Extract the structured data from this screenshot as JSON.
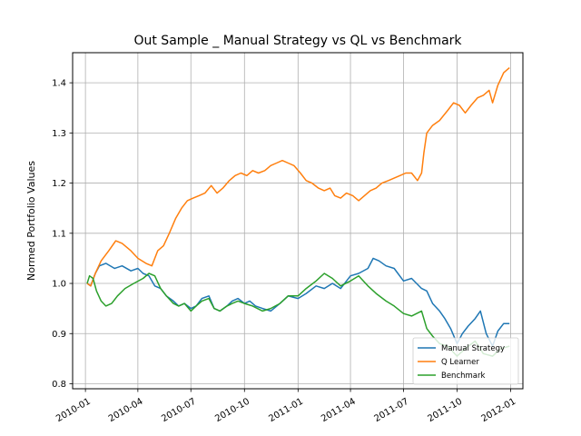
{
  "chart_data": {
    "type": "line",
    "title": "Out Sample _ Manual Strategy vs QL vs Benchmark",
    "xlabel": "",
    "ylabel": "Normed Portfolio Values",
    "x_ticks": [
      "2010-01",
      "2010-04",
      "2010-07",
      "2010-10",
      "2011-01",
      "2011-04",
      "2011-07",
      "2011-10",
      "2012-01"
    ],
    "y_ticks": [
      "0.8",
      "0.9",
      "1.0",
      "1.1",
      "1.2",
      "1.3",
      "1.4"
    ],
    "ylim": [
      0.79,
      1.46
    ],
    "xlim": [
      "2009-12-10",
      "2012-01-22"
    ],
    "grid": true,
    "legend_position": "lower right",
    "series": [
      {
        "name": "Manual Strategy",
        "color": "#1f77b4",
        "points": [
          [
            "2010-01-04",
            1.0
          ],
          [
            "2010-01-10",
            0.995
          ],
          [
            "2010-01-18",
            1.02
          ],
          [
            "2010-01-25",
            1.035
          ],
          [
            "2010-02-05",
            1.04
          ],
          [
            "2010-02-20",
            1.03
          ],
          [
            "2010-03-05",
            1.035
          ],
          [
            "2010-03-20",
            1.025
          ],
          [
            "2010-04-01",
            1.03
          ],
          [
            "2010-04-10",
            1.02
          ],
          [
            "2010-04-20",
            1.015
          ],
          [
            "2010-04-30",
            0.995
          ],
          [
            "2010-05-10",
            0.99
          ],
          [
            "2010-05-20",
            0.975
          ],
          [
            "2010-06-01",
            0.965
          ],
          [
            "2010-06-10",
            0.955
          ],
          [
            "2010-06-20",
            0.96
          ],
          [
            "2010-07-01",
            0.95
          ],
          [
            "2010-07-10",
            0.955
          ],
          [
            "2010-07-20",
            0.97
          ],
          [
            "2010-08-01",
            0.975
          ],
          [
            "2010-08-10",
            0.95
          ],
          [
            "2010-08-20",
            0.945
          ],
          [
            "2010-09-01",
            0.955
          ],
          [
            "2010-09-10",
            0.965
          ],
          [
            "2010-09-20",
            0.97
          ],
          [
            "2010-10-01",
            0.96
          ],
          [
            "2010-10-10",
            0.965
          ],
          [
            "2010-10-20",
            0.955
          ],
          [
            "2010-11-01",
            0.95
          ],
          [
            "2010-11-15",
            0.945
          ],
          [
            "2010-12-01",
            0.96
          ],
          [
            "2010-12-15",
            0.975
          ],
          [
            "2011-01-01",
            0.97
          ],
          [
            "2011-01-15",
            0.98
          ],
          [
            "2011-02-01",
            0.995
          ],
          [
            "2011-02-15",
            0.99
          ],
          [
            "2011-03-01",
            1.0
          ],
          [
            "2011-03-15",
            0.99
          ],
          [
            "2011-04-01",
            1.015
          ],
          [
            "2011-04-15",
            1.02
          ],
          [
            "2011-05-01",
            1.03
          ],
          [
            "2011-05-10",
            1.05
          ],
          [
            "2011-05-20",
            1.045
          ],
          [
            "2011-06-01",
            1.035
          ],
          [
            "2011-06-15",
            1.03
          ],
          [
            "2011-07-01",
            1.005
          ],
          [
            "2011-07-15",
            1.01
          ],
          [
            "2011-08-01",
            0.99
          ],
          [
            "2011-08-10",
            0.985
          ],
          [
            "2011-08-20",
            0.96
          ],
          [
            "2011-09-01",
            0.945
          ],
          [
            "2011-09-10",
            0.93
          ],
          [
            "2011-09-20",
            0.91
          ],
          [
            "2011-10-01",
            0.88
          ],
          [
            "2011-10-10",
            0.9
          ],
          [
            "2011-10-20",
            0.915
          ],
          [
            "2011-11-01",
            0.93
          ],
          [
            "2011-11-10",
            0.945
          ],
          [
            "2011-11-20",
            0.9
          ],
          [
            "2011-12-01",
            0.875
          ],
          [
            "2011-12-10",
            0.905
          ],
          [
            "2011-12-20",
            0.92
          ],
          [
            "2011-12-30",
            0.92
          ]
        ]
      },
      {
        "name": "Q Learner",
        "color": "#ff7f0e",
        "points": [
          [
            "2010-01-04",
            1.0
          ],
          [
            "2010-01-10",
            0.995
          ],
          [
            "2010-01-18",
            1.02
          ],
          [
            "2010-01-28",
            1.045
          ],
          [
            "2010-02-10",
            1.065
          ],
          [
            "2010-02-22",
            1.085
          ],
          [
            "2010-03-05",
            1.08
          ],
          [
            "2010-03-20",
            1.065
          ],
          [
            "2010-04-01",
            1.05
          ],
          [
            "2010-04-15",
            1.04
          ],
          [
            "2010-04-25",
            1.035
          ],
          [
            "2010-05-05",
            1.065
          ],
          [
            "2010-05-15",
            1.075
          ],
          [
            "2010-05-25",
            1.1
          ],
          [
            "2010-06-05",
            1.13
          ],
          [
            "2010-06-15",
            1.15
          ],
          [
            "2010-06-25",
            1.165
          ],
          [
            "2010-07-05",
            1.17
          ],
          [
            "2010-07-15",
            1.175
          ],
          [
            "2010-07-25",
            1.18
          ],
          [
            "2010-08-05",
            1.195
          ],
          [
            "2010-08-15",
            1.18
          ],
          [
            "2010-08-25",
            1.19
          ],
          [
            "2010-09-05",
            1.205
          ],
          [
            "2010-09-15",
            1.215
          ],
          [
            "2010-09-25",
            1.22
          ],
          [
            "2010-10-05",
            1.215
          ],
          [
            "2010-10-15",
            1.225
          ],
          [
            "2010-10-25",
            1.22
          ],
          [
            "2010-11-05",
            1.225
          ],
          [
            "2010-11-15",
            1.235
          ],
          [
            "2010-11-25",
            1.24
          ],
          [
            "2010-12-05",
            1.245
          ],
          [
            "2010-12-15",
            1.24
          ],
          [
            "2010-12-25",
            1.235
          ],
          [
            "2011-01-05",
            1.22
          ],
          [
            "2011-01-15",
            1.205
          ],
          [
            "2011-01-25",
            1.2
          ],
          [
            "2011-02-05",
            1.19
          ],
          [
            "2011-02-15",
            1.185
          ],
          [
            "2011-02-25",
            1.19
          ],
          [
            "2011-03-05",
            1.175
          ],
          [
            "2011-03-15",
            1.17
          ],
          [
            "2011-03-25",
            1.18
          ],
          [
            "2011-04-05",
            1.175
          ],
          [
            "2011-04-15",
            1.165
          ],
          [
            "2011-04-25",
            1.175
          ],
          [
            "2011-05-05",
            1.185
          ],
          [
            "2011-05-15",
            1.19
          ],
          [
            "2011-05-25",
            1.2
          ],
          [
            "2011-06-05",
            1.205
          ],
          [
            "2011-06-15",
            1.21
          ],
          [
            "2011-06-25",
            1.215
          ],
          [
            "2011-07-05",
            1.22
          ],
          [
            "2011-07-15",
            1.22
          ],
          [
            "2011-07-25",
            1.205
          ],
          [
            "2011-08-01",
            1.22
          ],
          [
            "2011-08-05",
            1.26
          ],
          [
            "2011-08-10",
            1.3
          ],
          [
            "2011-08-20",
            1.315
          ],
          [
            "2011-09-01",
            1.325
          ],
          [
            "2011-09-15",
            1.345
          ],
          [
            "2011-09-25",
            1.36
          ],
          [
            "2011-10-05",
            1.355
          ],
          [
            "2011-10-15",
            1.34
          ],
          [
            "2011-10-25",
            1.355
          ],
          [
            "2011-11-05",
            1.37
          ],
          [
            "2011-11-15",
            1.375
          ],
          [
            "2011-11-25",
            1.385
          ],
          [
            "2011-12-01",
            1.36
          ],
          [
            "2011-12-10",
            1.395
          ],
          [
            "2011-12-20",
            1.42
          ],
          [
            "2011-12-30",
            1.43
          ]
        ]
      },
      {
        "name": "Benchmark",
        "color": "#2ca02c",
        "points": [
          [
            "2010-01-04",
            1.0
          ],
          [
            "2010-01-08",
            1.015
          ],
          [
            "2010-01-14",
            1.01
          ],
          [
            "2010-01-20",
            0.985
          ],
          [
            "2010-01-28",
            0.965
          ],
          [
            "2010-02-05",
            0.955
          ],
          [
            "2010-02-15",
            0.96
          ],
          [
            "2010-02-25",
            0.975
          ],
          [
            "2010-03-10",
            0.99
          ],
          [
            "2010-03-25",
            1.0
          ],
          [
            "2010-04-10",
            1.01
          ],
          [
            "2010-04-20",
            1.02
          ],
          [
            "2010-04-30",
            1.015
          ],
          [
            "2010-05-10",
            0.99
          ],
          [
            "2010-05-20",
            0.975
          ],
          [
            "2010-06-01",
            0.96
          ],
          [
            "2010-06-10",
            0.955
          ],
          [
            "2010-06-20",
            0.96
          ],
          [
            "2010-07-01",
            0.945
          ],
          [
            "2010-07-10",
            0.955
          ],
          [
            "2010-07-20",
            0.965
          ],
          [
            "2010-08-01",
            0.97
          ],
          [
            "2010-08-10",
            0.95
          ],
          [
            "2010-08-20",
            0.945
          ],
          [
            "2010-09-01",
            0.955
          ],
          [
            "2010-09-10",
            0.96
          ],
          [
            "2010-09-20",
            0.965
          ],
          [
            "2010-10-01",
            0.96
          ],
          [
            "2010-10-15",
            0.955
          ],
          [
            "2010-11-01",
            0.945
          ],
          [
            "2010-11-15",
            0.95
          ],
          [
            "2010-12-01",
            0.96
          ],
          [
            "2010-12-15",
            0.975
          ],
          [
            "2011-01-01",
            0.975
          ],
          [
            "2011-01-15",
            0.99
          ],
          [
            "2011-02-01",
            1.005
          ],
          [
            "2011-02-15",
            1.02
          ],
          [
            "2011-03-01",
            1.01
          ],
          [
            "2011-03-15",
            0.995
          ],
          [
            "2011-04-01",
            1.005
          ],
          [
            "2011-04-15",
            1.015
          ],
          [
            "2011-05-01",
            0.995
          ],
          [
            "2011-05-15",
            0.98
          ],
          [
            "2011-06-01",
            0.965
          ],
          [
            "2011-06-15",
            0.955
          ],
          [
            "2011-07-01",
            0.94
          ],
          [
            "2011-07-15",
            0.935
          ],
          [
            "2011-08-01",
            0.945
          ],
          [
            "2011-08-10",
            0.91
          ],
          [
            "2011-08-20",
            0.895
          ],
          [
            "2011-09-01",
            0.88
          ],
          [
            "2011-09-15",
            0.875
          ],
          [
            "2011-10-01",
            0.855
          ],
          [
            "2011-10-15",
            0.87
          ],
          [
            "2011-11-01",
            0.885
          ],
          [
            "2011-11-15",
            0.86
          ],
          [
            "2011-12-01",
            0.855
          ],
          [
            "2011-12-15",
            0.87
          ],
          [
            "2011-12-30",
            0.875
          ]
        ]
      }
    ]
  }
}
